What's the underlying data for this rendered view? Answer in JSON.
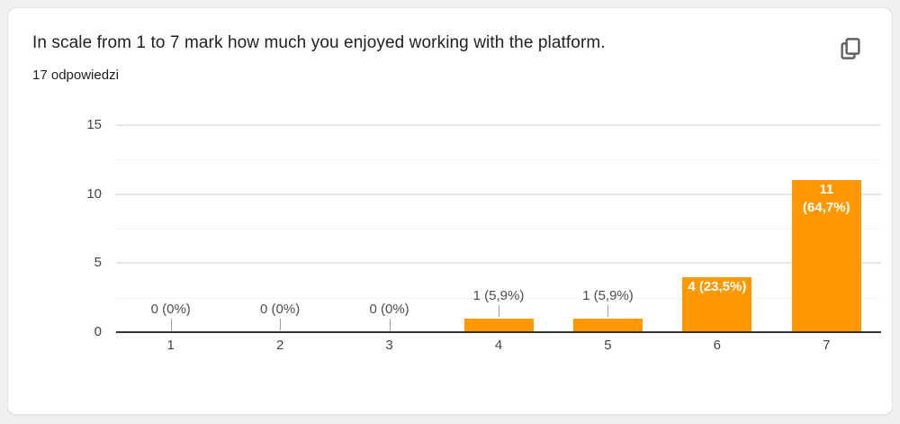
{
  "card": {
    "title": "In scale from 1 to 7 mark how much you enjoyed working with the platform.",
    "responses_count": "17 odpowiedzi"
  },
  "chart_data": {
    "type": "bar",
    "title": "",
    "xlabel": "",
    "ylabel": "",
    "categories": [
      "1",
      "2",
      "3",
      "4",
      "5",
      "6",
      "7"
    ],
    "values": [
      0,
      0,
      0,
      1,
      1,
      4,
      11
    ],
    "annotations": [
      {
        "lines": [
          "0 (0%)"
        ],
        "placement": "outside"
      },
      {
        "lines": [
          "0 (0%)"
        ],
        "placement": "outside"
      },
      {
        "lines": [
          "0 (0%)"
        ],
        "placement": "outside"
      },
      {
        "lines": [
          "1 (5,9%)"
        ],
        "placement": "outside"
      },
      {
        "lines": [
          "1 (5,9%)"
        ],
        "placement": "outside"
      },
      {
        "lines": [
          "4 (23,5%)"
        ],
        "placement": "inside"
      },
      {
        "lines": [
          "11",
          "(64,7%)"
        ],
        "placement": "inside"
      }
    ],
    "ylim": [
      0,
      15
    ],
    "y_ticks": [
      0,
      5,
      10,
      15
    ],
    "minor_ticks": [
      2.5,
      7.5,
      12.5
    ],
    "grid": true,
    "legend": "none",
    "bar_color": "#FF9800",
    "annotation_outside_color": "#4d4d4d",
    "annotation_inside_color": "#ffffff",
    "axis_text_color": "#444444",
    "gridline_color": "#e6e6e6",
    "minor_gridline_color": "#f2f2f2",
    "baseline_color": "#333333",
    "stem_color": "#9e9e9e"
  }
}
